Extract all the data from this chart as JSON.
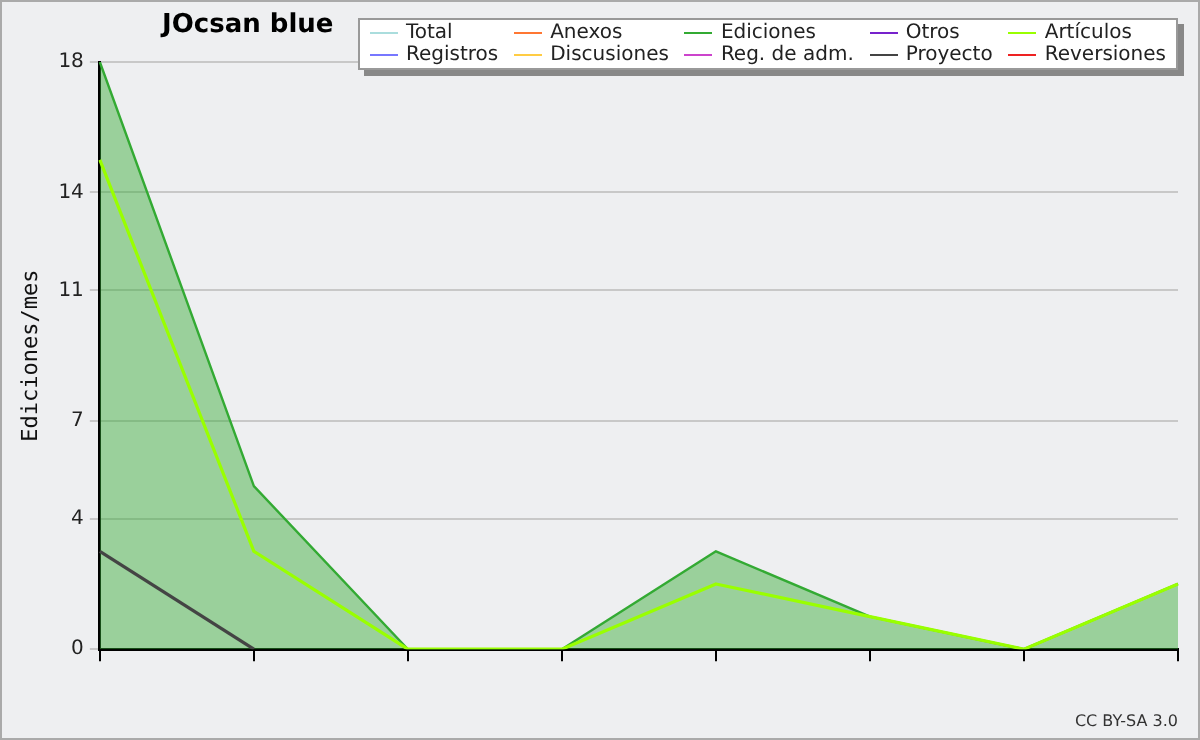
{
  "chart_data": {
    "type": "line",
    "title": "JOcsan blue",
    "ylabel": "Ediciones/mes",
    "categories": [
      null,
      null,
      null,
      null,
      null,
      null,
      null,
      null
    ],
    "series": [
      {
        "name": "Total",
        "color": "#aadddd",
        "values": [
          null,
          null,
          null,
          null,
          null,
          null,
          null,
          null
        ]
      },
      {
        "name": "Anexos",
        "color": "#ff7733",
        "values": [
          null,
          null,
          null,
          null,
          null,
          null,
          null,
          null
        ]
      },
      {
        "name": "Ediciones",
        "type": "area",
        "color": "#33aa33",
        "values": [
          18,
          5,
          0,
          0,
          3,
          1,
          0,
          2
        ]
      },
      {
        "name": "Otros",
        "color": "#7722cc",
        "values": [
          null,
          null,
          null,
          null,
          null,
          null,
          null,
          null
        ]
      },
      {
        "name": "Artículos",
        "color": "#99ff00",
        "values": [
          15,
          3,
          0,
          0,
          2,
          1,
          0,
          2
        ]
      },
      {
        "name": "Registros",
        "color": "#7777ff",
        "values": [
          null,
          null,
          null,
          null,
          null,
          null,
          null,
          null
        ]
      },
      {
        "name": "Discusiones",
        "color": "#ffcc44",
        "values": [
          null,
          null,
          null,
          null,
          null,
          null,
          null,
          null
        ]
      },
      {
        "name": "Reg. de adm.",
        "color": "#cc44cc",
        "values": [
          null,
          null,
          null,
          null,
          null,
          null,
          null,
          null
        ]
      },
      {
        "name": "Proyecto",
        "color": "#444444",
        "values": [
          3,
          0,
          null,
          null,
          null,
          null,
          null,
          null
        ]
      },
      {
        "name": "Reversiones",
        "color": "#ee2222",
        "values": [
          null,
          null,
          null,
          null,
          null,
          null,
          null,
          null
        ]
      }
    ],
    "ylim": [
      0,
      18
    ],
    "yticks": [
      0,
      4,
      7,
      11,
      14,
      18
    ],
    "grid": "y",
    "legend": "top right",
    "marker": "none",
    "line_style": "solid",
    "annotations": [
      "CC BY-SA 3.0"
    ]
  }
}
